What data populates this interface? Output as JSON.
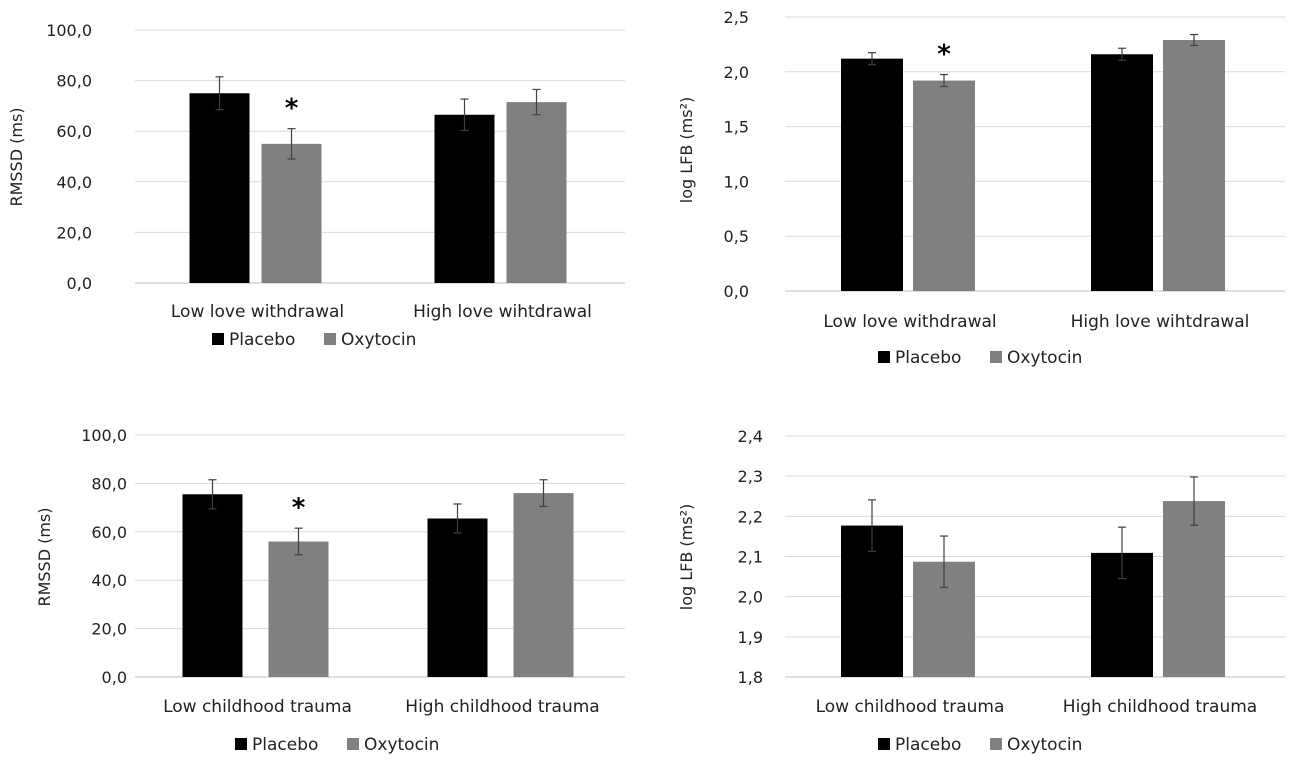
{
  "colors": {
    "placebo": "#000000",
    "oxytocin": "#808080",
    "grid": "#d9d9d9",
    "axis": "#bfbfbf",
    "errorbar": "#404040"
  },
  "chart_data": [
    {
      "id": "chart-tl",
      "type": "bar",
      "ylabel": "RMSSD (ms)",
      "ylim": [
        0,
        100
      ],
      "ytick_labels": [
        "0,0",
        "20,0",
        "40,0",
        "60,0",
        "80,0",
        "100,0"
      ],
      "categories": [
        "Low love withdrawal",
        "High love wihtdrawal"
      ],
      "series": [
        {
          "name": "Placebo",
          "values": [
            75,
            66.5
          ],
          "errors": [
            6.5,
            6.2
          ]
        },
        {
          "name": "Oxytocin",
          "values": [
            55,
            71.5
          ],
          "errors": [
            6,
            5
          ]
        }
      ],
      "significance": [
        {
          "category": 0,
          "label": "*"
        }
      ],
      "legend": {
        "position": "bottom",
        "labels": [
          "Placebo",
          "Oxytocin"
        ]
      },
      "grid": true
    },
    {
      "id": "chart-tr",
      "type": "bar",
      "ylabel": "log LFB (ms²)",
      "ylim": [
        0,
        2.5
      ],
      "ytick_labels": [
        "0,0",
        "0,5",
        "1,0",
        "1,5",
        "2,0",
        "2,5"
      ],
      "categories": [
        "Low love withdrawal",
        "High love wihtdrawal"
      ],
      "series": [
        {
          "name": "Placebo",
          "values": [
            2.12,
            2.16
          ],
          "errors": [
            0.055,
            0.055
          ]
        },
        {
          "name": "Oxytocin",
          "values": [
            1.92,
            2.29
          ],
          "errors": [
            0.055,
            0.05
          ]
        }
      ],
      "significance": [
        {
          "category": 0,
          "label": "*"
        }
      ],
      "legend": {
        "position": "bottom",
        "labels": [
          "Placebo",
          "Oxytocin"
        ]
      },
      "grid": true
    },
    {
      "id": "chart-bl",
      "type": "bar",
      "ylabel": "RMSSD (ms)",
      "ylim": [
        0,
        100
      ],
      "ytick_labels": [
        "0,0",
        "20,0",
        "40,0",
        "60,0",
        "80,0",
        "100,0"
      ],
      "categories": [
        "Low childhood trauma",
        "High childhood trauma"
      ],
      "series": [
        {
          "name": "Placebo",
          "values": [
            75.5,
            65.5
          ],
          "errors": [
            6,
            6
          ]
        },
        {
          "name": "Oxytocin",
          "values": [
            56,
            76
          ],
          "errors": [
            5.5,
            5.5
          ]
        }
      ],
      "significance": [
        {
          "category": 0,
          "label": "*"
        }
      ],
      "legend": {
        "position": "bottom",
        "labels": [
          "Placebo",
          "Oxytocin"
        ]
      },
      "grid": true
    },
    {
      "id": "chart-br",
      "type": "bar",
      "ylabel": "log LFB (ms²)",
      "ylim": [
        1.8,
        2.4
      ],
      "ytick_labels": [
        "1,8",
        "1,9",
        "2,0",
        "2,1",
        "2,2",
        "2,3",
        "2,4"
      ],
      "categories": [
        "Low childhood trauma",
        "High childhood trauma"
      ],
      "series": [
        {
          "name": "Placebo",
          "values": [
            2.177,
            2.109
          ],
          "errors": [
            0.064,
            0.064
          ]
        },
        {
          "name": "Oxytocin",
          "values": [
            2.087,
            2.238
          ],
          "errors": [
            0.064,
            0.06
          ]
        }
      ],
      "significance": [],
      "legend": {
        "position": "bottom",
        "labels": [
          "Placebo",
          "Oxytocin"
        ]
      },
      "grid": true
    }
  ]
}
